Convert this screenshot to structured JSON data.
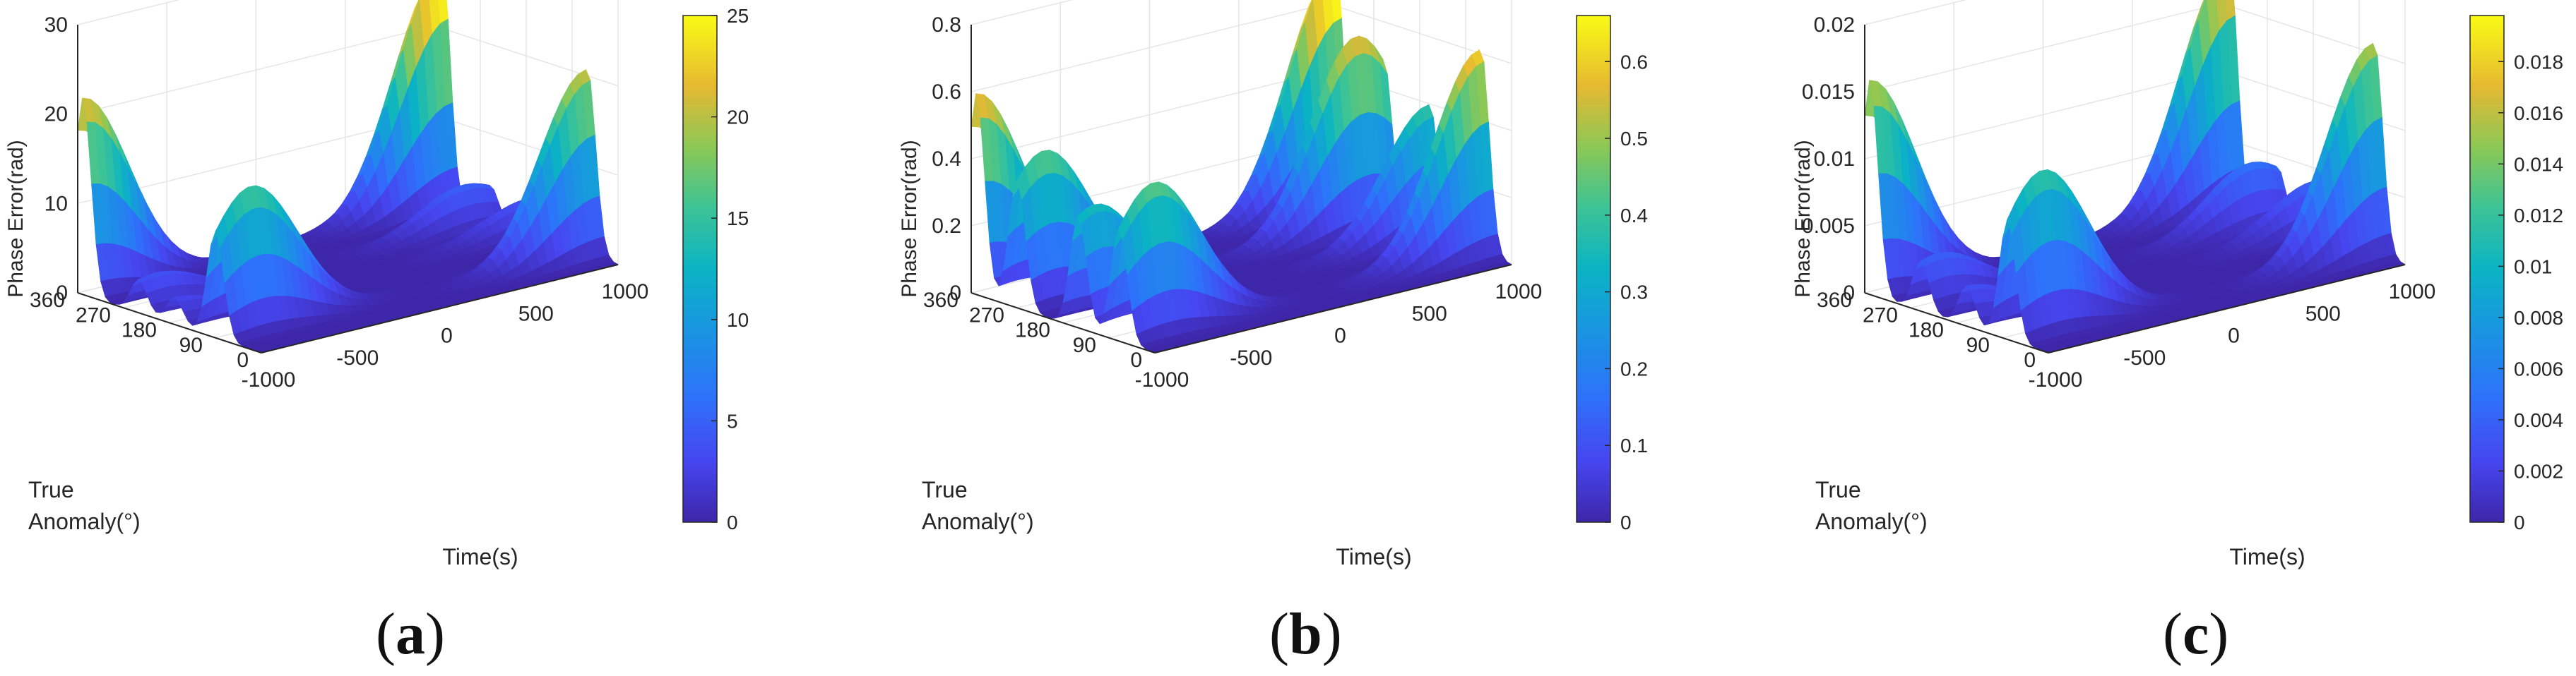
{
  "chart_data": [
    {
      "type": "surface3d",
      "panel_label": "a",
      "zlabel": "Phase Error(rad)",
      "xlabel": "Time(s)",
      "ylabel_line1": "True",
      "ylabel_line2": "Anomaly(°)",
      "x_ticks": [
        "-1000",
        "-500",
        "0",
        "500",
        "1000"
      ],
      "y_ticks": [
        "0",
        "90",
        "180",
        "270",
        "360"
      ],
      "z_ticks": [
        "0",
        "10",
        "20",
        "30"
      ],
      "z_range": [
        0,
        30
      ],
      "colorbar_ticks": [
        "0",
        "5",
        "10",
        "15",
        "20",
        "25"
      ],
      "colorbar_range": [
        0,
        25
      ],
      "x_range": [
        -1000,
        1000
      ],
      "y_range": [
        0,
        360
      ],
      "peaks": [
        {
          "t": -1000,
          "anomaly": 350,
          "value": 22
        },
        {
          "t": -900,
          "anomaly": 240,
          "value": 4
        },
        {
          "t": -1000,
          "anomaly": 170,
          "value": 3
        },
        {
          "t": -800,
          "anomaly": 90,
          "value": 16
        },
        {
          "t": 1000,
          "anomaly": 345,
          "value": 28
        },
        {
          "t": 850,
          "anomaly": 250,
          "value": 5
        },
        {
          "t": 1000,
          "anomaly": 180,
          "value": 4
        },
        {
          "t": 1000,
          "anomaly": 60,
          "value": 21
        }
      ]
    },
    {
      "type": "surface3d",
      "panel_label": "b",
      "zlabel": "Phase Error(rad)",
      "xlabel": "Time(s)",
      "ylabel_line1": "True",
      "ylabel_line2": "Anomaly(°)",
      "x_ticks": [
        "-1000",
        "-500",
        "0",
        "500",
        "1000"
      ],
      "y_ticks": [
        "0",
        "90",
        "180",
        "270",
        "360"
      ],
      "z_ticks": [
        "0",
        "0.2",
        "0.4",
        "0.6",
        "0.8"
      ],
      "z_range": [
        0,
        0.8
      ],
      "colorbar_ticks": [
        "0",
        "0.1",
        "0.2",
        "0.3",
        "0.4",
        "0.5",
        "0.6"
      ],
      "colorbar_range": [
        0,
        0.66
      ],
      "x_range": [
        -1000,
        1000
      ],
      "y_range": [
        0,
        360
      ],
      "peaks": [
        {
          "t": -1000,
          "anomaly": 350,
          "value": 0.6
        },
        {
          "t": -850,
          "anomaly": 270,
          "value": 0.45
        },
        {
          "t": -900,
          "anomaly": 150,
          "value": 0.36
        },
        {
          "t": -800,
          "anomaly": 70,
          "value": 0.45
        },
        {
          "t": 1000,
          "anomaly": 345,
          "value": 0.75
        },
        {
          "t": 850,
          "anomaly": 250,
          "value": 0.58
        },
        {
          "t": 1000,
          "anomaly": 160,
          "value": 0.4
        },
        {
          "t": 1000,
          "anomaly": 60,
          "value": 0.62
        }
      ]
    },
    {
      "type": "surface3d",
      "panel_label": "c",
      "zlabel": "Phase Error(rad)",
      "xlabel": "Time(s)",
      "ylabel_line1": "True",
      "ylabel_line2": "Anomaly(°)",
      "x_ticks": [
        "-1000",
        "-500",
        "0",
        "500",
        "1000"
      ],
      "y_ticks": [
        "0",
        "90",
        "180",
        "270",
        "360"
      ],
      "z_ticks": [
        "0",
        "0.005",
        "0.01",
        "0.015",
        "0.02"
      ],
      "z_range": [
        0,
        0.02
      ],
      "colorbar_ticks": [
        "0",
        "0.002",
        "0.004",
        "0.006",
        "0.008",
        "0.01",
        "0.012",
        "0.014",
        "0.016",
        "0.018"
      ],
      "colorbar_range": [
        0,
        0.0198
      ],
      "x_range": [
        -1000,
        1000
      ],
      "y_range": [
        0,
        360
      ],
      "peaks": [
        {
          "t": -1000,
          "anomaly": 350,
          "value": 0.016
        },
        {
          "t": -900,
          "anomaly": 250,
          "value": 0.004
        },
        {
          "t": -1000,
          "anomaly": 160,
          "value": 0.003
        },
        {
          "t": -800,
          "anomaly": 80,
          "value": 0.012
        },
        {
          "t": 1000,
          "anomaly": 345,
          "value": 0.019
        },
        {
          "t": 850,
          "anomaly": 250,
          "value": 0.005
        },
        {
          "t": 1000,
          "anomaly": 180,
          "value": 0.004
        },
        {
          "t": 1000,
          "anomaly": 60,
          "value": 0.016
        }
      ]
    }
  ]
}
